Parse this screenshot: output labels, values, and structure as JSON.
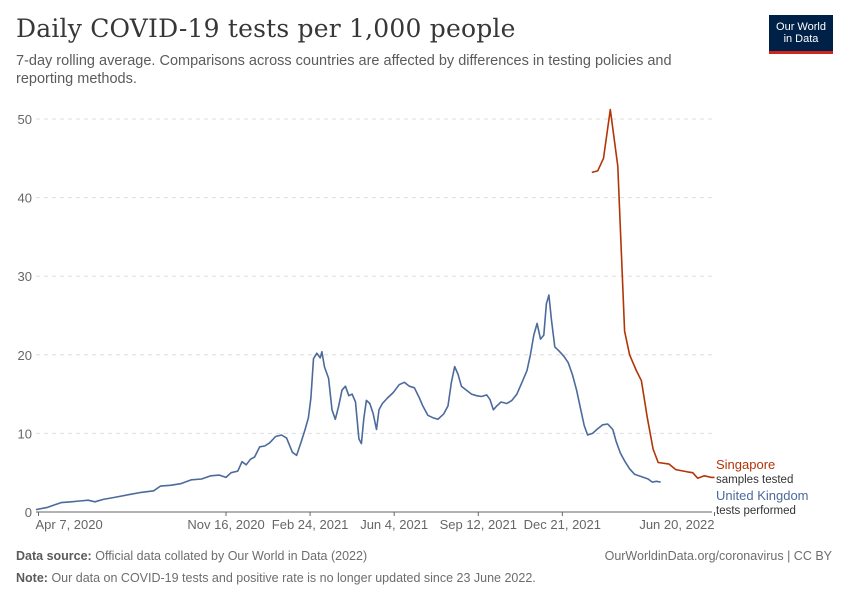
{
  "header": {
    "title": "Daily COVID-19 tests per 1,000 people",
    "subtitle": "7-day rolling average. Comparisons across countries are affected by differences in testing policies and reporting methods."
  },
  "logo": {
    "line1": "Our World",
    "line2": "in Data"
  },
  "footer": {
    "source_label": "Data source:",
    "source_text": "Official data collated by Our World in Data (2022)",
    "url_text": "OurWorldinData.org/coronavirus | CC BY",
    "note_label": "Note:",
    "note_text": "Our data on COVID-19 tests and positive rate is no longer updated since 23 June 2022."
  },
  "chart_data": {
    "type": "line",
    "title": "Daily COVID-19 tests per 1,000 people",
    "xlabel": "",
    "ylabel": "",
    "ylim": [
      0,
      50
    ],
    "yticks": [
      0,
      10,
      20,
      30,
      40,
      50
    ],
    "xlim_days": [
      0,
      804
    ],
    "xticks": [
      {
        "day": 3,
        "label": "Apr 7, 2020"
      },
      {
        "day": 226,
        "label": "Nov 16, 2020"
      },
      {
        "day": 326,
        "label": "Feb 24, 2021"
      },
      {
        "day": 426,
        "label": "Jun 4, 2021"
      },
      {
        "day": 526,
        "label": "Sep 12, 2021"
      },
      {
        "day": 626,
        "label": "Dec 21, 2021"
      },
      {
        "day": 807,
        "label": "Jun 20, 2022"
      }
    ],
    "grid": true,
    "legend_placement": "right-end-labels",
    "series": [
      {
        "name": "Singapore",
        "note": "samples tested",
        "color": "#b13507",
        "points": [
          [
            661,
            43.2
          ],
          [
            668,
            43.4
          ],
          [
            675,
            45.0
          ],
          [
            683,
            51.2
          ],
          [
            692,
            44.0
          ],
          [
            700,
            23.0
          ],
          [
            706,
            20.0
          ],
          [
            714,
            18.0
          ],
          [
            720,
            16.7
          ],
          [
            727,
            12.0
          ],
          [
            734,
            8.0
          ],
          [
            740,
            6.3
          ],
          [
            753,
            6.1
          ],
          [
            761,
            5.4
          ],
          [
            775,
            5.1
          ],
          [
            781,
            5.0
          ],
          [
            787,
            4.3
          ],
          [
            795,
            4.6
          ],
          [
            803,
            4.4
          ],
          [
            807,
            4.4
          ]
        ]
      },
      {
        "name": "United Kingdom",
        "note": "tests performed",
        "color": "#4c6a9c",
        "points": [
          [
            0,
            0.3
          ],
          [
            14,
            0.6
          ],
          [
            22,
            0.9
          ],
          [
            30,
            1.2
          ],
          [
            42,
            1.3
          ],
          [
            52,
            1.4
          ],
          [
            62,
            1.5
          ],
          [
            70,
            1.3
          ],
          [
            80,
            1.6
          ],
          [
            95,
            1.9
          ],
          [
            110,
            2.2
          ],
          [
            125,
            2.5
          ],
          [
            140,
            2.7
          ],
          [
            148,
            3.3
          ],
          [
            160,
            3.4
          ],
          [
            172,
            3.6
          ],
          [
            185,
            4.1
          ],
          [
            197,
            4.2
          ],
          [
            208,
            4.6
          ],
          [
            218,
            4.7
          ],
          [
            226,
            4.4
          ],
          [
            232,
            5.0
          ],
          [
            240,
            5.2
          ],
          [
            245,
            6.4
          ],
          [
            250,
            6.0
          ],
          [
            255,
            6.7
          ],
          [
            260,
            7.0
          ],
          [
            266,
            8.3
          ],
          [
            272,
            8.4
          ],
          [
            278,
            8.8
          ],
          [
            285,
            9.6
          ],
          [
            292,
            9.8
          ],
          [
            298,
            9.4
          ],
          [
            305,
            7.6
          ],
          [
            310,
            7.2
          ],
          [
            315,
            8.8
          ],
          [
            320,
            10.5
          ],
          [
            324,
            12.0
          ],
          [
            327,
            14.5
          ],
          [
            330,
            19.5
          ],
          [
            334,
            20.2
          ],
          [
            338,
            19.6
          ],
          [
            340,
            20.4
          ],
          [
            343,
            18.5
          ],
          [
            348,
            17.0
          ],
          [
            352,
            13.0
          ],
          [
            356,
            11.8
          ],
          [
            360,
            13.5
          ],
          [
            364,
            15.5
          ],
          [
            368,
            16.0
          ],
          [
            372,
            14.8
          ],
          [
            376,
            15.0
          ],
          [
            380,
            14.0
          ],
          [
            384,
            9.3
          ],
          [
            387,
            8.7
          ],
          [
            390,
            12.0
          ],
          [
            393,
            14.2
          ],
          [
            397,
            13.8
          ],
          [
            401,
            12.5
          ],
          [
            405,
            10.5
          ],
          [
            408,
            13.0
          ],
          [
            412,
            13.8
          ],
          [
            418,
            14.5
          ],
          [
            425,
            15.2
          ],
          [
            432,
            16.2
          ],
          [
            438,
            16.5
          ],
          [
            444,
            16.0
          ],
          [
            450,
            15.8
          ],
          [
            456,
            14.5
          ],
          [
            460,
            13.5
          ],
          [
            466,
            12.3
          ],
          [
            472,
            12.0
          ],
          [
            478,
            11.8
          ],
          [
            485,
            12.5
          ],
          [
            490,
            13.5
          ],
          [
            494,
            16.5
          ],
          [
            498,
            18.5
          ],
          [
            502,
            17.5
          ],
          [
            506,
            16.0
          ],
          [
            512,
            15.5
          ],
          [
            518,
            15.0
          ],
          [
            524,
            14.8
          ],
          [
            530,
            14.7
          ],
          [
            536,
            14.9
          ],
          [
            540,
            14.3
          ],
          [
            544,
            13.0
          ],
          [
            548,
            13.5
          ],
          [
            553,
            14.0
          ],
          [
            560,
            13.8
          ],
          [
            566,
            14.2
          ],
          [
            572,
            15.0
          ],
          [
            578,
            16.5
          ],
          [
            584,
            18.0
          ],
          [
            588,
            20.0
          ],
          [
            592,
            22.5
          ],
          [
            596,
            24.0
          ],
          [
            600,
            22.0
          ],
          [
            604,
            22.5
          ],
          [
            607,
            26.5
          ],
          [
            610,
            27.6
          ],
          [
            613,
            24.5
          ],
          [
            617,
            21.0
          ],
          [
            622,
            20.5
          ],
          [
            628,
            19.8
          ],
          [
            633,
            19.0
          ],
          [
            638,
            17.5
          ],
          [
            643,
            15.5
          ],
          [
            648,
            13.0
          ],
          [
            652,
            11.0
          ],
          [
            656,
            9.8
          ],
          [
            662,
            10.0
          ],
          [
            668,
            10.6
          ],
          [
            674,
            11.1
          ],
          [
            680,
            11.2
          ],
          [
            686,
            10.5
          ],
          [
            690,
            9.0
          ],
          [
            695,
            7.5
          ],
          [
            700,
            6.5
          ],
          [
            706,
            5.5
          ],
          [
            712,
            4.8
          ],
          [
            720,
            4.5
          ],
          [
            728,
            4.2
          ],
          [
            733,
            3.8
          ],
          [
            738,
            3.9
          ],
          [
            743,
            3.8
          ]
        ]
      }
    ]
  }
}
